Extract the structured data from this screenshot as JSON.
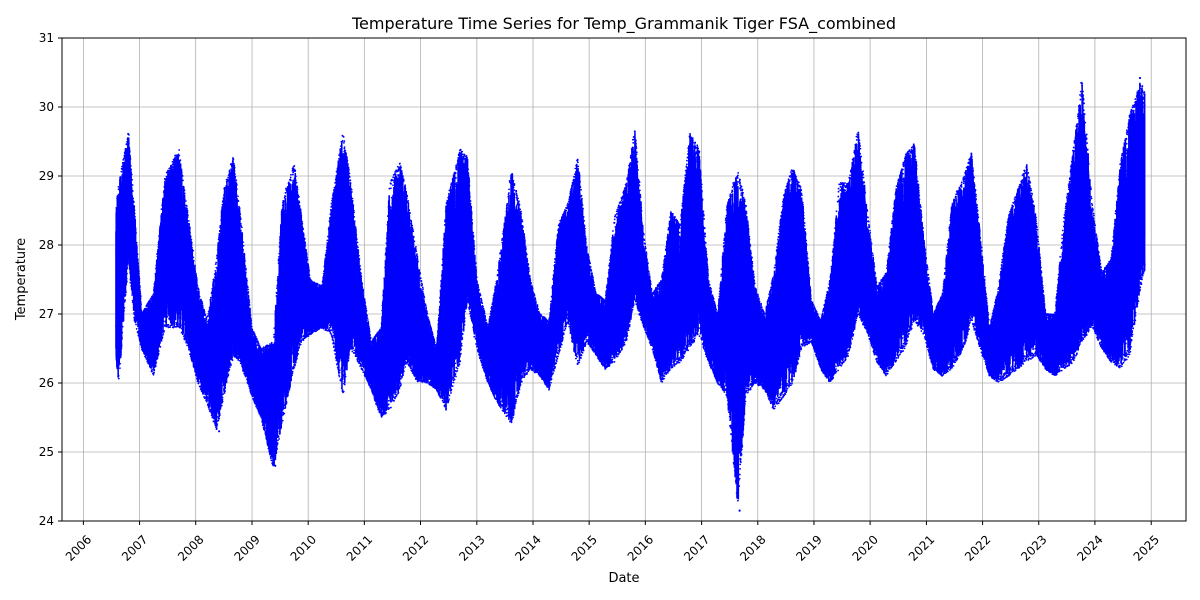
{
  "chart_data": {
    "type": "scatter",
    "title": "Temperature Time Series for Temp_Grammanik Tiger FSA_combined",
    "xlabel": "Date",
    "ylabel": "Temperature",
    "xlim": [
      "2005-08-15",
      "2025-08-15"
    ],
    "ylim": [
      24,
      31
    ],
    "x_ticks": [
      "2006",
      "2007",
      "2008",
      "2009",
      "2010",
      "2011",
      "2012",
      "2013",
      "2014",
      "2015",
      "2016",
      "2017",
      "2018",
      "2019",
      "2020",
      "2021",
      "2022",
      "2023",
      "2024",
      "2025"
    ],
    "y_ticks": [
      "24",
      "25",
      "26",
      "27",
      "28",
      "29",
      "30",
      "31"
    ],
    "grid": true,
    "series_color": "#0000ff",
    "marker": "dot",
    "data_start": "2006-08-01",
    "data_end": "2024-11-20",
    "envelope": {
      "dates": [
        "2006-08-01",
        "2006-08-20",
        "2006-10-20",
        "2006-11-30",
        "2007-01-15",
        "2007-04-01",
        "2007-06-15",
        "2007-09-15",
        "2007-11-15",
        "2008-01-15",
        "2008-03-15",
        "2008-05-15",
        "2008-07-01",
        "2008-09-01",
        "2008-10-15",
        "2009-01-01",
        "2009-03-01",
        "2009-05-20",
        "2009-07-15",
        "2009-10-01",
        "2009-11-20",
        "2010-01-15",
        "2010-04-01",
        "2010-06-01",
        "2010-08-15",
        "2010-10-01",
        "2010-12-15",
        "2011-02-15",
        "2011-04-20",
        "2011-06-15",
        "2011-08-20",
        "2011-10-01",
        "2011-12-15",
        "2012-02-15",
        "2012-04-15",
        "2012-06-15",
        "2012-09-15",
        "2012-11-01",
        "2013-01-01",
        "2013-03-15",
        "2013-05-15",
        "2013-08-15",
        "2013-10-15",
        "2013-12-15",
        "2014-02-15",
        "2014-04-15",
        "2014-06-15",
        "2014-08-15",
        "2014-10-20",
        "2014-12-15",
        "2015-02-15",
        "2015-04-15",
        "2015-06-15",
        "2015-09-01",
        "2015-10-25",
        "2015-12-20",
        "2016-02-15",
        "2016-04-15",
        "2016-06-15",
        "2016-08-15",
        "2016-10-15",
        "2016-12-15",
        "2017-02-15",
        "2017-04-15",
        "2017-06-15",
        "2017-08-25",
        "2017-10-15",
        "2017-12-15",
        "2018-02-15",
        "2018-04-15",
        "2018-06-15",
        "2018-08-15",
        "2018-10-15",
        "2018-12-15",
        "2019-02-15",
        "2019-04-15",
        "2019-06-15",
        "2019-08-15",
        "2019-10-15",
        "2019-12-15",
        "2020-02-15",
        "2020-04-15",
        "2020-06-15",
        "2020-08-15",
        "2020-10-15",
        "2020-12-15",
        "2021-02-15",
        "2021-04-15",
        "2021-06-15",
        "2021-09-01",
        "2021-10-20",
        "2021-12-15",
        "2022-02-15",
        "2022-04-15",
        "2022-06-15",
        "2022-08-15",
        "2022-10-15",
        "2022-12-15",
        "2023-02-15",
        "2023-04-15",
        "2023-06-15",
        "2023-08-15",
        "2023-10-10",
        "2023-12-15",
        "2024-02-15",
        "2024-04-15",
        "2024-06-15",
        "2024-08-15",
        "2024-10-25",
        "2024-11-20"
      ],
      "low": [
        26.3,
        26.0,
        27.8,
        26.9,
        26.5,
        26.1,
        26.8,
        26.8,
        26.5,
        26.0,
        25.7,
        25.3,
        25.8,
        26.4,
        26.3,
        25.8,
        25.5,
        24.75,
        25.4,
        26.2,
        26.6,
        26.7,
        26.8,
        26.7,
        25.8,
        26.5,
        26.2,
        25.9,
        25.5,
        25.6,
        25.9,
        26.3,
        26.0,
        26.0,
        25.9,
        25.6,
        26.3,
        27.2,
        26.5,
        26.0,
        25.7,
        25.4,
        26.0,
        26.2,
        26.1,
        25.9,
        26.4,
        26.9,
        26.2,
        26.6,
        26.4,
        26.2,
        26.3,
        26.6,
        27.2,
        26.8,
        26.5,
        26.0,
        26.2,
        26.3,
        26.5,
        26.7,
        26.3,
        26.0,
        25.8,
        24.2,
        25.8,
        26.0,
        25.9,
        25.6,
        25.8,
        26.0,
        26.5,
        26.6,
        26.2,
        26.0,
        26.2,
        26.4,
        27.0,
        26.7,
        26.3,
        26.1,
        26.3,
        26.5,
        26.9,
        26.7,
        26.2,
        26.1,
        26.2,
        26.5,
        26.9,
        26.5,
        26.1,
        26.0,
        26.1,
        26.2,
        26.3,
        26.4,
        26.2,
        26.1,
        26.2,
        26.3,
        26.6,
        26.8,
        26.5,
        26.3,
        26.2,
        26.4,
        27.4,
        27.6
      ],
      "high": [
        28.6,
        28.9,
        29.65,
        28.5,
        27.0,
        27.3,
        29.0,
        29.4,
        28.4,
        27.4,
        26.9,
        27.8,
        28.8,
        29.3,
        28.5,
        26.8,
        26.5,
        26.6,
        28.6,
        29.2,
        28.4,
        27.5,
        27.4,
        28.6,
        29.65,
        29.0,
        27.5,
        26.6,
        26.8,
        28.9,
        29.2,
        28.8,
        27.8,
        27.0,
        26.5,
        28.6,
        29.4,
        29.3,
        27.5,
        26.8,
        27.6,
        29.1,
        28.5,
        27.5,
        27.0,
        26.9,
        28.3,
        28.6,
        29.3,
        28.0,
        27.3,
        27.2,
        28.4,
        28.9,
        29.7,
        28.2,
        27.3,
        27.5,
        28.5,
        28.3,
        29.65,
        29.4,
        27.5,
        27.0,
        28.6,
        29.1,
        28.6,
        27.4,
        27.0,
        27.6,
        28.7,
        29.15,
        28.8,
        27.2,
        26.9,
        27.5,
        28.9,
        28.9,
        29.7,
        28.5,
        27.4,
        27.6,
        28.8,
        29.3,
        29.5,
        28.1,
        27.0,
        27.3,
        28.6,
        29.0,
        29.35,
        28.2,
        26.8,
        27.4,
        28.4,
        28.8,
        29.2,
        28.4,
        27.0,
        27.0,
        28.4,
        29.4,
        30.4,
        28.6,
        27.6,
        27.8,
        29.2,
        29.9,
        30.4,
        30.2
      ]
    },
    "outliers": [
      {
        "date": "2017-09-05",
        "temperature": 24.15
      },
      {
        "date": "2017-09-10",
        "temperature": 24.9
      },
      {
        "date": "2017-09-12",
        "temperature": 25.5
      },
      {
        "date": "2009-06-01",
        "temperature": 24.8
      },
      {
        "date": "2008-06-01",
        "temperature": 25.3
      },
      {
        "date": "2023-10-05",
        "temperature": 30.35
      },
      {
        "date": "2024-10-20",
        "temperature": 30.42
      }
    ]
  }
}
